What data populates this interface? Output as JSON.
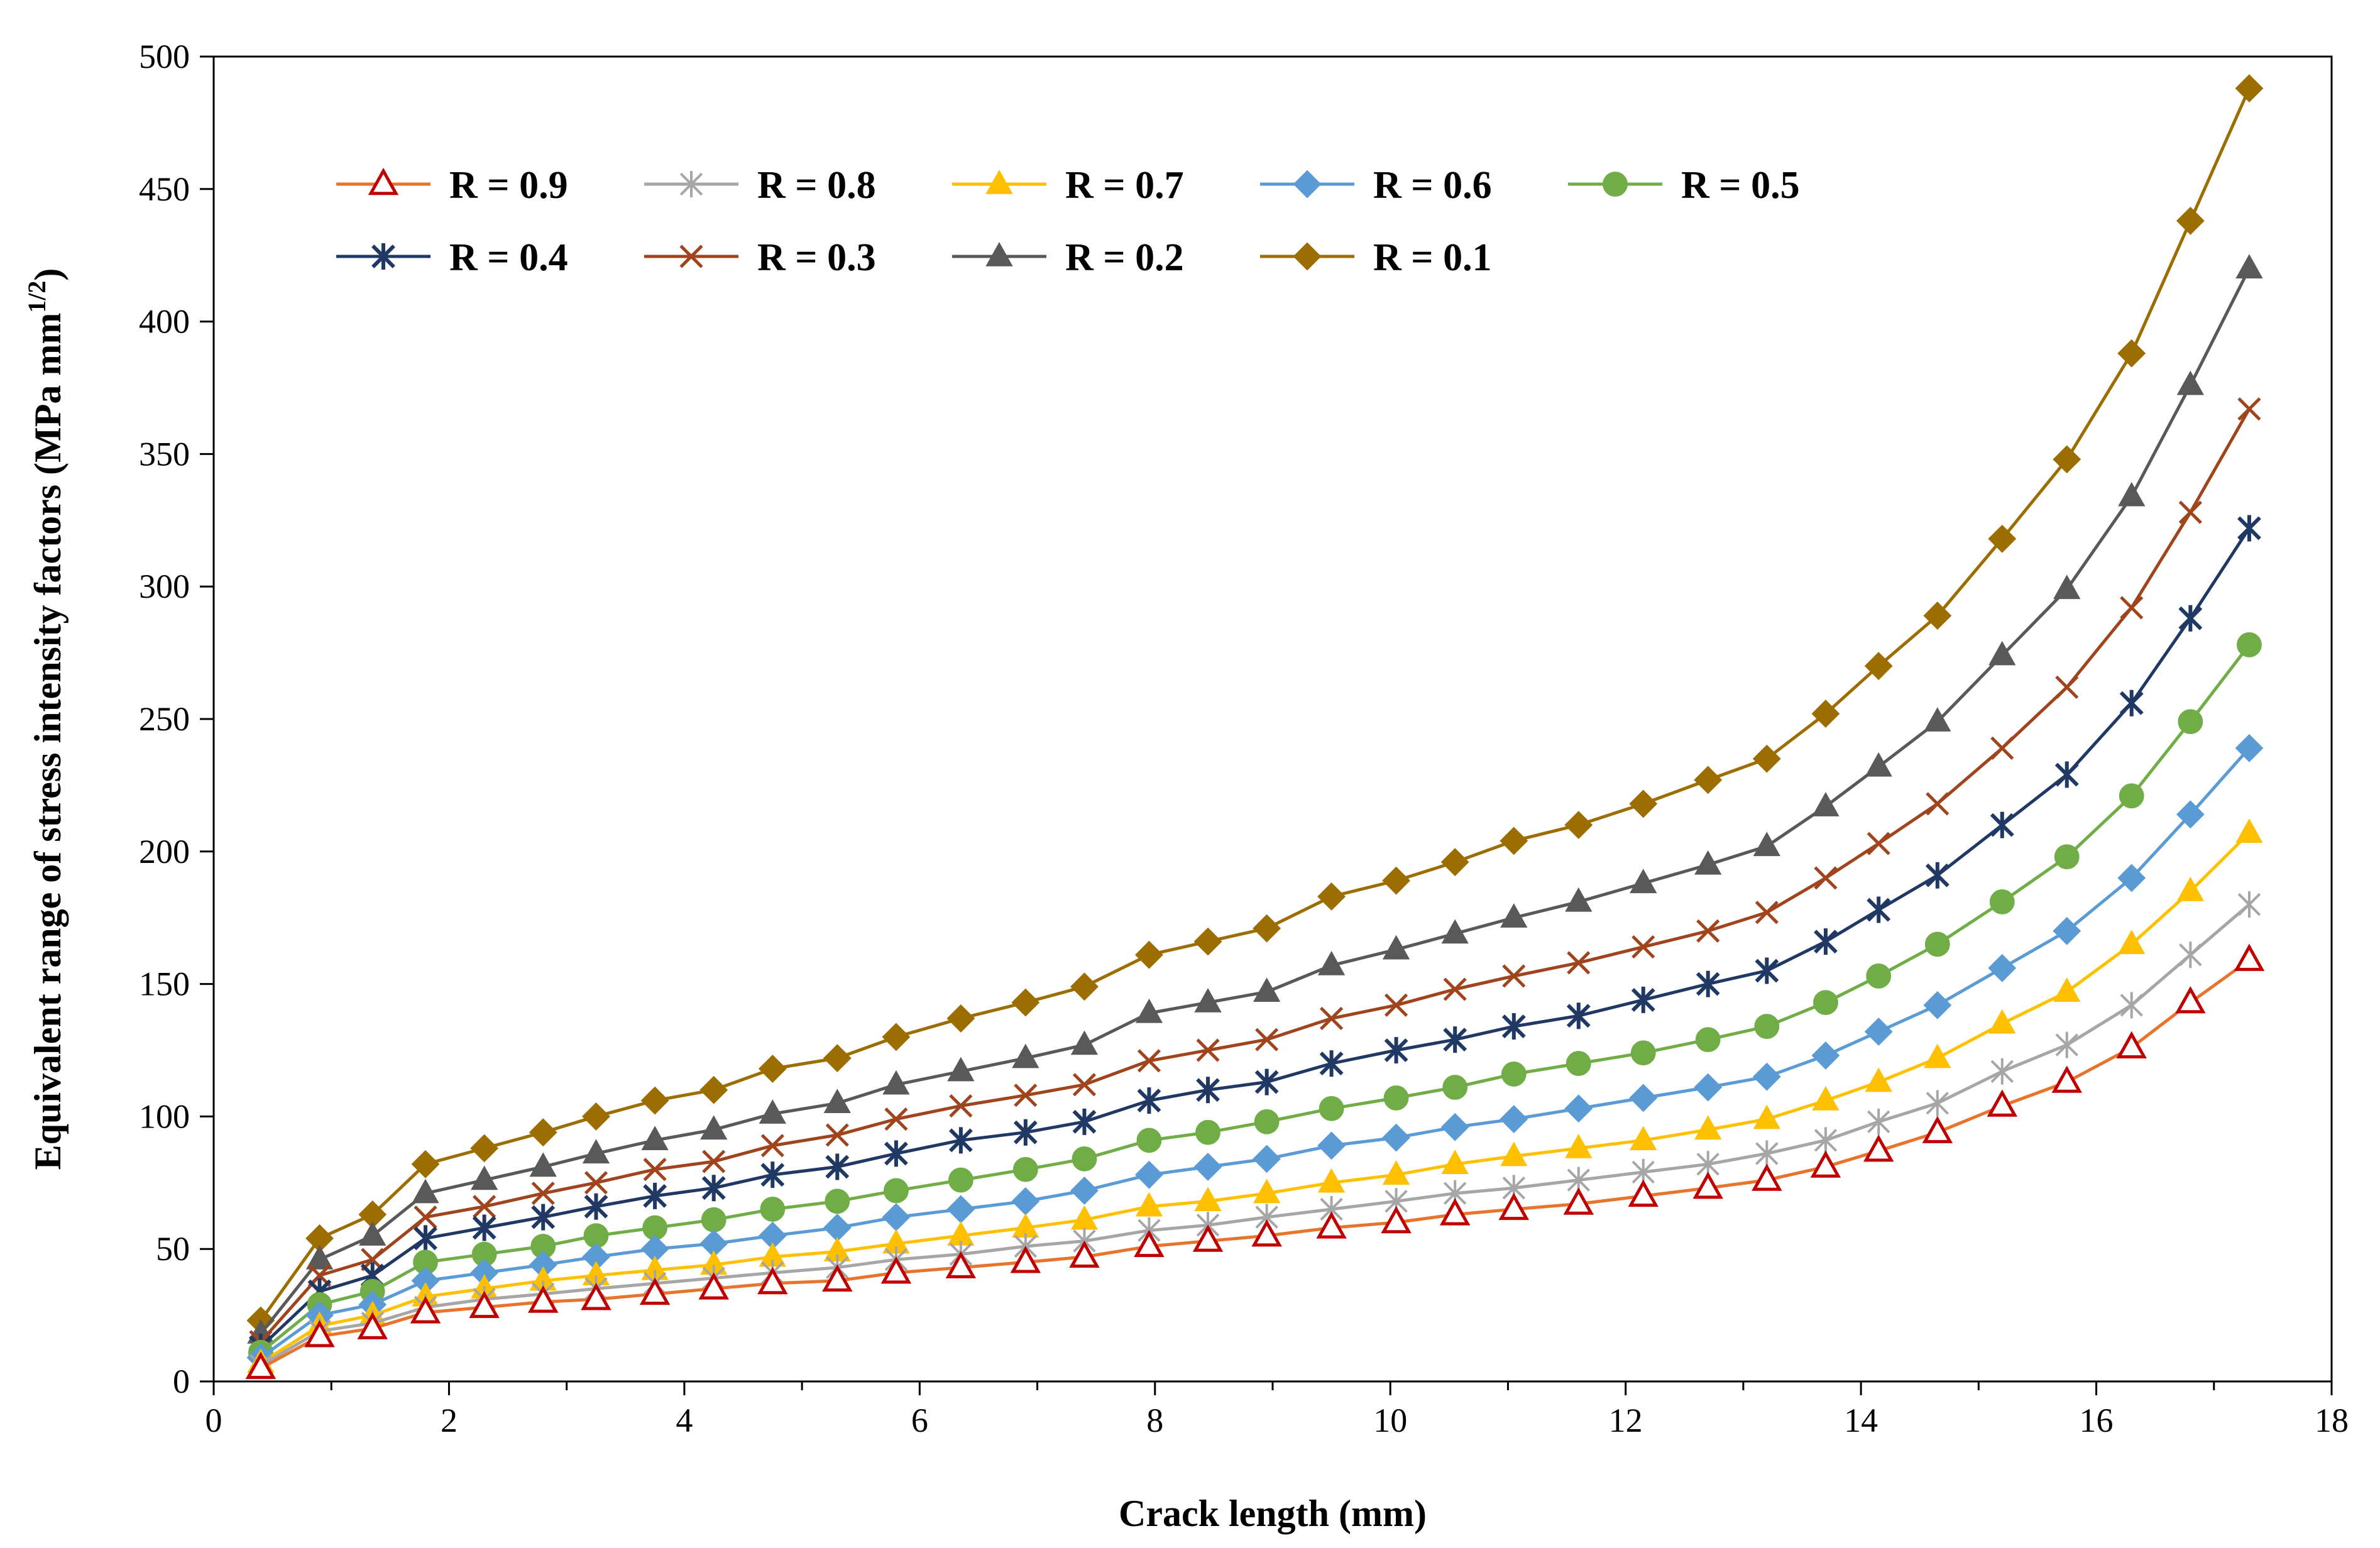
{
  "chart_data": {
    "type": "line",
    "title": "",
    "xlabel": "Crack length (mm)",
    "ylabel": "Equivalent range of stress intensity factors (MPa mm",
    "ylabel_sup": "1/2",
    "ylabel_close": ")",
    "xlim": [
      0,
      18
    ],
    "ylim": [
      0,
      500
    ],
    "xticks": [
      "0",
      "2",
      "4",
      "6",
      "8",
      "10",
      "12",
      "14",
      "16",
      "18"
    ],
    "yticks": [
      "0",
      "50",
      "100",
      "150",
      "200",
      "250",
      "300",
      "350",
      "400",
      "450",
      "500"
    ],
    "legend_position": "top-left",
    "x": [
      0.4,
      0.9,
      1.35,
      1.8,
      2.3,
      2.8,
      3.25,
      3.75,
      4.25,
      4.75,
      5.3,
      5.8,
      6.35,
      6.9,
      7.4,
      7.95,
      8.45,
      8.95,
      9.5,
      10.05,
      10.55,
      11.05,
      11.6,
      12.15,
      12.7,
      13.2,
      13.7,
      14.15,
      14.65,
      15.2,
      15.75,
      16.3,
      16.8,
      17.3
    ],
    "series": [
      {
        "name": "R = 0.9",
        "color": "#e8732a",
        "marker": "triangle-open",
        "markerColor": "#c00000",
        "values": [
          5,
          17,
          20,
          26,
          28,
          30,
          31,
          33,
          35,
          37,
          38,
          41,
          43,
          45,
          47,
          51,
          53,
          55,
          58,
          60,
          63,
          65,
          67,
          70,
          73,
          76,
          81,
          87,
          94,
          104,
          113,
          126,
          143,
          159
        ]
      },
      {
        "name": "R = 0.8",
        "color": "#a6a6a6",
        "marker": "star",
        "markerColor": "#a6a6a6",
        "values": [
          6,
          19,
          22,
          28,
          31,
          33,
          35,
          37,
          39,
          41,
          43,
          46,
          48,
          51,
          53,
          57,
          59,
          62,
          65,
          68,
          71,
          73,
          76,
          79,
          82,
          86,
          91,
          98,
          105,
          117,
          127,
          142,
          161,
          180
        ]
      },
      {
        "name": "R = 0.7",
        "color": "#ffc000",
        "marker": "triangle-filled",
        "markerColor": "#ffc000",
        "values": [
          7,
          21,
          25,
          32,
          35,
          38,
          40,
          42,
          44,
          47,
          49,
          52,
          55,
          58,
          61,
          66,
          68,
          71,
          75,
          78,
          82,
          85,
          88,
          91,
          95,
          99,
          106,
          113,
          122,
          135,
          147,
          165,
          185,
          207
        ]
      },
      {
        "name": "R = 0.6",
        "color": "#5b9bd5",
        "marker": "diamond",
        "markerColor": "#5b9bd5",
        "values": [
          9,
          25,
          29,
          38,
          41,
          44,
          47,
          50,
          52,
          55,
          58,
          62,
          65,
          68,
          72,
          78,
          81,
          84,
          89,
          92,
          96,
          99,
          103,
          107,
          111,
          115,
          123,
          132,
          142,
          156,
          170,
          190,
          214,
          239
        ]
      },
      {
        "name": "R = 0.5",
        "color": "#70ad47",
        "marker": "circle",
        "markerColor": "#70ad47",
        "values": [
          11,
          29,
          34,
          45,
          48,
          51,
          55,
          58,
          61,
          65,
          68,
          72,
          76,
          80,
          84,
          91,
          94,
          98,
          103,
          107,
          111,
          116,
          120,
          124,
          129,
          134,
          143,
          153,
          165,
          181,
          198,
          221,
          249,
          278
        ]
      },
      {
        "name": "R = 0.4",
        "color": "#203864",
        "marker": "asterisk",
        "markerColor": "#203864",
        "values": [
          13,
          34,
          40,
          54,
          58,
          62,
          66,
          70,
          73,
          78,
          81,
          86,
          91,
          94,
          98,
          106,
          110,
          113,
          120,
          125,
          129,
          134,
          138,
          144,
          150,
          155,
          166,
          178,
          191,
          210,
          229,
          256,
          288,
          322
        ]
      },
      {
        "name": "R = 0.3",
        "color": "#a0441d",
        "marker": "x",
        "markerColor": "#a0441d",
        "values": [
          15,
          40,
          46,
          62,
          66,
          71,
          75,
          80,
          83,
          89,
          93,
          99,
          104,
          108,
          112,
          121,
          125,
          129,
          137,
          142,
          148,
          153,
          158,
          164,
          170,
          177,
          190,
          203,
          218,
          239,
          262,
          292,
          328,
          367
        ]
      },
      {
        "name": "R = 0.2",
        "color": "#595959",
        "marker": "triangle-filled",
        "markerColor": "#595959",
        "values": [
          18,
          46,
          55,
          71,
          76,
          81,
          86,
          91,
          95,
          101,
          105,
          112,
          117,
          122,
          127,
          139,
          143,
          147,
          157,
          163,
          169,
          175,
          181,
          188,
          195,
          202,
          217,
          232,
          249,
          274,
          299,
          334,
          376,
          420
        ]
      },
      {
        "name": "R = 0.1",
        "color": "#9c6d00",
        "marker": "diamond",
        "markerColor": "#9c6d00",
        "values": [
          23,
          54,
          63,
          82,
          88,
          94,
          100,
          106,
          110,
          118,
          122,
          130,
          137,
          143,
          149,
          161,
          166,
          171,
          183,
          189,
          196,
          204,
          210,
          218,
          227,
          235,
          252,
          270,
          289,
          318,
          348,
          388,
          438,
          488
        ]
      }
    ]
  }
}
